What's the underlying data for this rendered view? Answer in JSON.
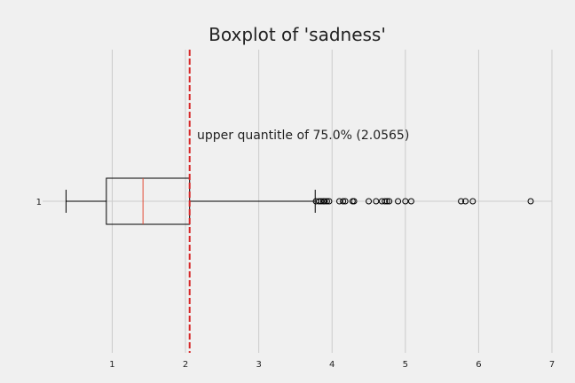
{
  "chart_data": {
    "type": "boxplot",
    "title": "Boxplot of 'sadness'",
    "xlabel": "",
    "ylabel": "",
    "orientation": "horizontal",
    "xlim": [
      0.05,
      7.0
    ],
    "x_ticks": [
      1,
      2,
      3,
      4,
      5,
      6,
      7
    ],
    "y_ticks": [
      "1"
    ],
    "grid": true,
    "boxes": [
      {
        "label": "1",
        "whisker_low": 0.37,
        "q1": 0.92,
        "median": 1.42,
        "q3": 2.0565,
        "whisker_high": 3.77,
        "outliers": [
          3.78,
          3.82,
          3.85,
          3.88,
          3.9,
          3.93,
          3.96,
          4.1,
          4.15,
          4.18,
          4.28,
          4.3,
          4.5,
          4.6,
          4.68,
          4.72,
          4.75,
          4.78,
          4.9,
          5.0,
          5.08,
          5.76,
          5.82,
          5.92,
          6.71
        ]
      }
    ],
    "reference_line": {
      "value": 2.0565,
      "color": "#d62728",
      "style": "dashed"
    },
    "annotation": "upper quantitle of 75.0% (2.0565)",
    "colors": {
      "background": "#f0f0f0",
      "grid": "#cbcbcb",
      "box": "#000000",
      "median": "#e24a33",
      "reference": "#d62728"
    }
  }
}
